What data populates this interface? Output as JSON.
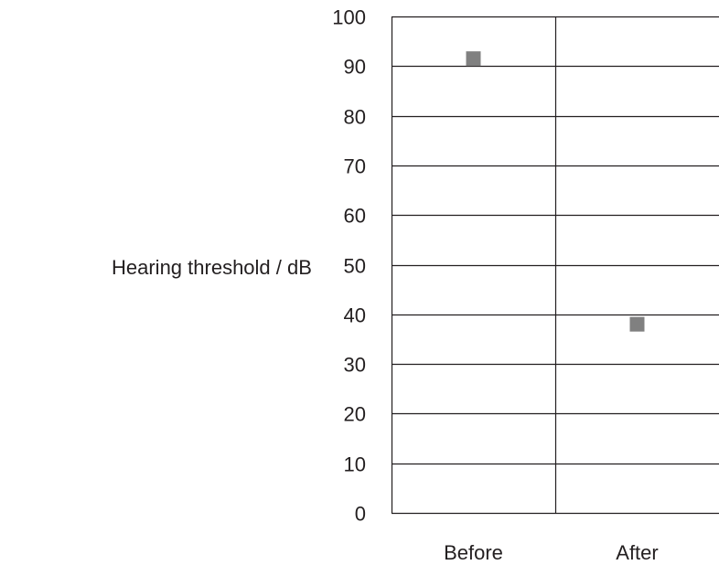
{
  "chart_data": {
    "type": "scatter",
    "title": "",
    "xlabel": "",
    "ylabel": "Hearing threshold / dB",
    "categories": [
      "Before",
      "After"
    ],
    "ylim": [
      0,
      100
    ],
    "yticks": [
      0,
      10,
      20,
      30,
      40,
      50,
      60,
      70,
      80,
      90,
      100
    ],
    "series": [
      {
        "values": [
          91.5,
          38
        ]
      }
    ],
    "grid": true,
    "legend": "none",
    "colors": {
      "marker": "#808080",
      "grid": "#231f20",
      "text": "#231f20",
      "background": "#ffffff"
    }
  }
}
